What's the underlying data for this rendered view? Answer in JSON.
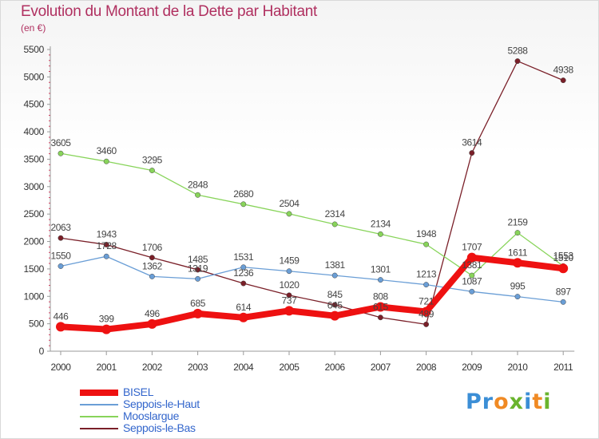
{
  "header": {
    "title": "Evolution du Montant de la Dette par Habitant",
    "unit": "(en €)"
  },
  "logo": {
    "text": "Proxiti"
  },
  "chart_data": {
    "type": "line",
    "title": "Evolution du Montant de la Dette par Habitant",
    "subtitle": "(en €)",
    "xlabel": "",
    "ylabel": "",
    "x": [
      "2000",
      "2001",
      "2002",
      "2003",
      "2004",
      "2005",
      "2006",
      "2007",
      "2008",
      "2009",
      "2010",
      "2011"
    ],
    "ylim": [
      0,
      5500
    ],
    "yticks": [
      "0",
      "500",
      "1000",
      "1500",
      "2000",
      "2500",
      "3000",
      "3500",
      "4000",
      "4500",
      "5000",
      "5500"
    ],
    "grid": false,
    "legend": "bottom-left",
    "series": [
      {
        "name": "Seppois-le-Bas",
        "color": "#7a1f28",
        "values": [
          2063,
          1943,
          1706,
          1485,
          1236,
          1020,
          845,
          615,
          489,
          3614,
          5288,
          4938
        ],
        "labels": [
          "2063",
          "1943",
          "1706",
          "1485",
          "1236",
          "1020",
          "845",
          "615",
          "489",
          "3614",
          "5288",
          "4938"
        ]
      },
      {
        "name": "Mooslargue",
        "color": "#88d45a",
        "values": [
          3605,
          3460,
          3295,
          2848,
          2680,
          2504,
          2314,
          2134,
          1948,
          1381,
          2159,
          1553
        ],
        "labels": [
          "3605",
          "3460",
          "3295",
          "2848",
          "2680",
          "2504",
          "2314",
          "2134",
          "1948",
          "1381",
          "2159",
          "1553"
        ]
      },
      {
        "name": "Seppois-le-Haut",
        "color": "#6a9ed6",
        "values": [
          1550,
          1728,
          1362,
          1319,
          1531,
          1459,
          1381,
          1301,
          1213,
          1087,
          995,
          897
        ],
        "labels": [
          "1550",
          "1728",
          "1362",
          "1319",
          "1531",
          "1459",
          "1381",
          "1301",
          "1213",
          "1087",
          "995",
          "897"
        ]
      },
      {
        "name": "BISEL",
        "color": "#ee1111",
        "values": [
          446,
          399,
          496,
          685,
          614,
          737,
          645,
          808,
          721,
          1707,
          1611,
          1510
        ],
        "labels": [
          "446",
          "399",
          "496",
          "685",
          "614",
          "737",
          "645",
          "808",
          "721",
          "1707",
          "1611",
          "1510"
        ]
      }
    ],
    "legend_entries": [
      {
        "name": "BISEL",
        "color": "#ee1111",
        "thick": true
      },
      {
        "name": "Seppois-le-Haut",
        "color": "#6a9ed6",
        "thick": false
      },
      {
        "name": "Mooslargue",
        "color": "#88d45a",
        "thick": false
      },
      {
        "name": "Seppois-le-Bas",
        "color": "#7a1f28",
        "thick": false
      }
    ]
  }
}
